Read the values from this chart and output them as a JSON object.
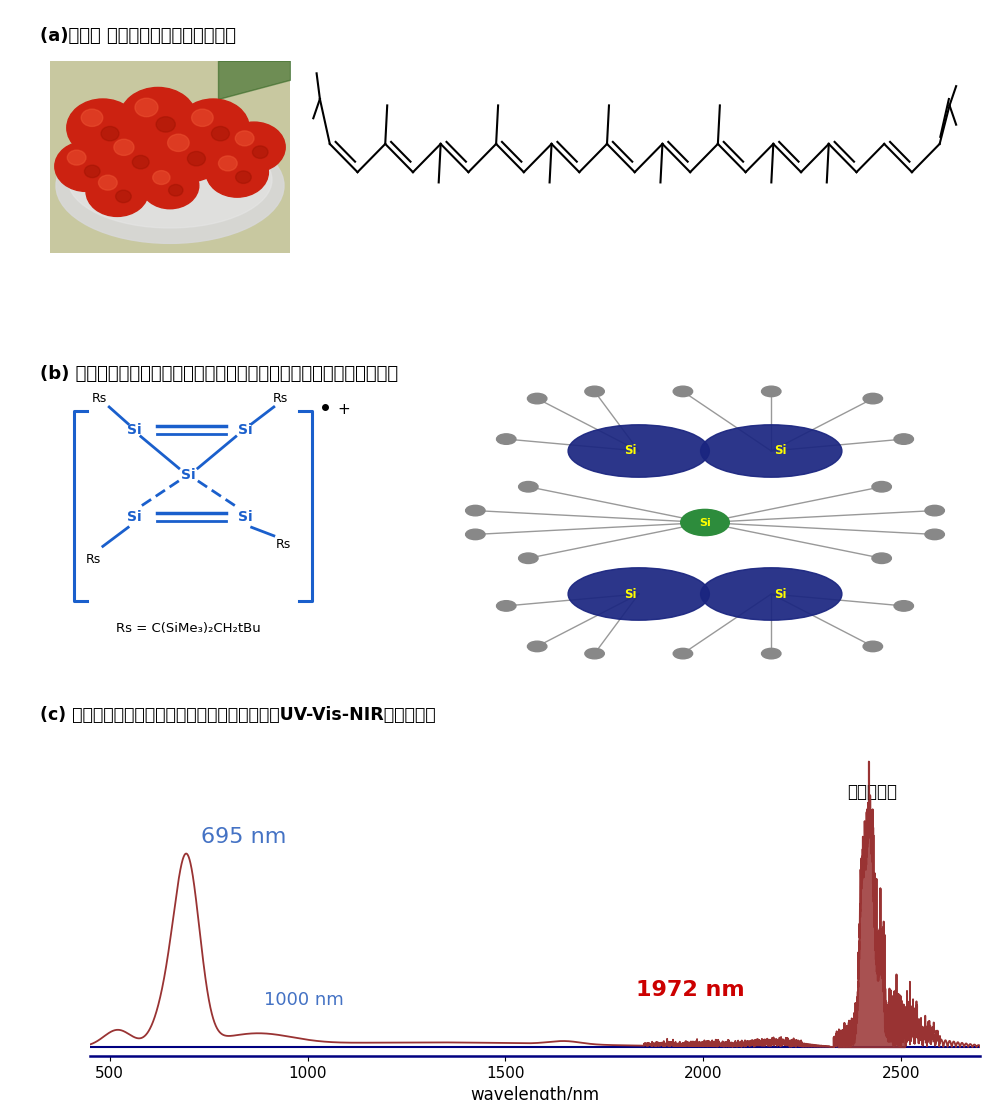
{
  "title_a": "(a)トマト の赤色とリコピンの構造式",
  "title_b": "(b) スピロペンタシラジエンのラジカルカチオンとそのスピン密度分布",
  "title_c": "(c) スピロペンタシラジエンラジカルカチオンのUV-Vis-NIRスペクトル",
  "xlabel": "wavelength/nm",
  "label_695": "695 nm",
  "label_1000": "1000 nm",
  "label_1972": "1972 nm",
  "label_solvent": "溶媒の吸収",
  "rs_formula": "Rs = C(SiMe₃)₂CH₂tBu",
  "spectrum_color": "#993333",
  "axis_color": "#000080",
  "label_695_color": "#4472C4",
  "label_1000_color": "#4472C4",
  "label_1972_color": "#CC0000",
  "xlim": [
    450,
    2700
  ],
  "xticks": [
    500,
    1000,
    1500,
    2000,
    2500
  ],
  "background_color": "#ffffff",
  "si_color": "#1a5fcc",
  "si_lw": 2.0
}
